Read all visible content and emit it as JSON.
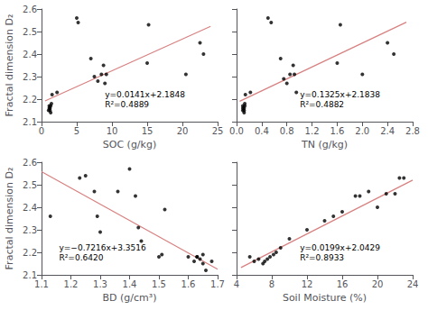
{
  "chart_data": [
    {
      "type": "scatter",
      "xlabel": "SOC (g/kg)",
      "ylabel": "Fractal dimension D₂",
      "annotations": [
        "y=0.0141x+2.1848",
        "R²=0.4889"
      ],
      "xlim": [
        0,
        25
      ],
      "ylim": [
        2.1,
        2.6
      ],
      "xticks": [
        0,
        5,
        10,
        15,
        20,
        25
      ],
      "yticks": [
        2.1,
        2.2,
        2.3,
        2.4,
        2.5,
        2.6
      ],
      "grid": false,
      "series": [
        {
          "type": "scatter",
          "color": "#000000",
          "x": [
            1.0,
            1.1,
            1.1,
            1.2,
            1.2,
            1.3,
            1.3,
            1.4,
            1.5,
            2.2,
            5.0,
            5.2,
            7.0,
            7.5,
            8.0,
            8.5,
            8.8,
            9.0,
            9.2,
            15.0,
            15.2,
            20.5,
            22.5,
            23.0
          ],
          "values": [
            2.15,
            2.17,
            2.16,
            2.16,
            2.15,
            2.14,
            2.17,
            2.18,
            2.22,
            2.23,
            2.56,
            2.54,
            2.38,
            2.3,
            2.28,
            2.31,
            2.35,
            2.27,
            2.31,
            2.36,
            2.53,
            2.31,
            2.45,
            2.4
          ]
        },
        {
          "type": "line",
          "color": "#d88080",
          "x": [
            0.5,
            24.0
          ],
          "values": [
            2.19185,
            2.5232
          ]
        }
      ]
    },
    {
      "type": "scatter",
      "xlabel": "TN (g/kg)",
      "annotations": [
        "y=0.1325x+2.1838",
        "R²=0.4882"
      ],
      "xlim": [
        0,
        2.8
      ],
      "ylim": [
        2.1,
        2.6
      ],
      "xticks": [
        {
          "value": 0,
          "label": "0.0"
        },
        0.4,
        0.8,
        1.2,
        1.6,
        {
          "value": 2,
          "label": "2.0"
        },
        2.4,
        2.8
      ],
      "yticks": [
        2.1,
        2.2,
        2.3,
        2.4,
        2.5,
        2.6
      ],
      "tick_labels": "x",
      "grid": false,
      "series": [
        {
          "type": "scatter",
          "color": "#000000",
          "x": [
            0.1,
            0.1,
            0.1,
            0.12,
            0.12,
            0.12,
            0.13,
            0.13,
            0.14,
            0.22,
            0.5,
            0.55,
            0.7,
            0.75,
            0.8,
            0.85,
            0.9,
            0.92,
            0.95,
            1.6,
            1.65,
            2.0,
            2.4,
            2.5
          ],
          "values": [
            2.15,
            2.17,
            2.16,
            2.16,
            2.15,
            2.14,
            2.17,
            2.18,
            2.22,
            2.23,
            2.56,
            2.54,
            2.38,
            2.29,
            2.27,
            2.31,
            2.35,
            2.31,
            2.23,
            2.36,
            2.53,
            2.31,
            2.45,
            2.4
          ]
        },
        {
          "type": "line",
          "color": "#d88080",
          "x": [
            0.05,
            2.7
          ],
          "values": [
            2.190425,
            2.54155
          ]
        }
      ]
    },
    {
      "type": "scatter",
      "xlabel": "BD (g/cm³)",
      "ylabel": "Fractal dimension D₂",
      "annotations": [
        "y=−0.7216x+3.3516",
        "R²=0.6420"
      ],
      "xlim": [
        1.1,
        1.7
      ],
      "ylim": [
        2.1,
        2.6
      ],
      "xticks": [
        1.1,
        1.2,
        1.3,
        1.4,
        1.5,
        1.6,
        1.7
      ],
      "yticks": [
        2.1,
        2.2,
        2.3,
        2.4,
        2.5,
        2.6
      ],
      "grid": false,
      "series": [
        {
          "type": "scatter",
          "color": "#000000",
          "x": [
            1.13,
            1.23,
            1.25,
            1.28,
            1.29,
            1.3,
            1.36,
            1.4,
            1.42,
            1.43,
            1.44,
            1.5,
            1.51,
            1.52,
            1.6,
            1.62,
            1.63,
            1.63,
            1.64,
            1.65,
            1.65,
            1.66,
            1.68
          ],
          "values": [
            2.36,
            2.53,
            2.54,
            2.47,
            2.36,
            2.29,
            2.47,
            2.57,
            2.45,
            2.31,
            2.25,
            2.18,
            2.19,
            2.39,
            2.18,
            2.16,
            2.18,
            2.18,
            2.17,
            2.19,
            2.15,
            2.12,
            2.16
          ]
        },
        {
          "type": "line",
          "color": "#d88080",
          "x": [
            1.1,
            1.7
          ],
          "values": [
            2.55784,
            2.12488
          ]
        }
      ]
    },
    {
      "type": "scatter",
      "xlabel": "Soil Moisture (%)",
      "annotations": [
        "y=0.0199x+2.0429",
        "R²=0.8933"
      ],
      "xlim": [
        4,
        24
      ],
      "ylim": [
        2.1,
        2.6
      ],
      "xticks": [
        4,
        8,
        12,
        16,
        20,
        24
      ],
      "yticks": [
        2.1,
        2.2,
        2.3,
        2.4,
        2.5,
        2.6
      ],
      "tick_labels": "x",
      "grid": false,
      "series": [
        {
          "type": "scatter",
          "color": "#000000",
          "x": [
            5.5,
            6.0,
            6.5,
            7.0,
            7.2,
            7.5,
            7.8,
            8.2,
            8.5,
            9.0,
            10.0,
            12.0,
            14.0,
            15.0,
            16.0,
            17.5,
            18.0,
            19.0,
            20.0,
            21.0,
            22.0,
            22.5,
            23.0
          ],
          "values": [
            2.18,
            2.16,
            2.17,
            2.15,
            2.16,
            2.17,
            2.18,
            2.19,
            2.2,
            2.22,
            2.26,
            2.3,
            2.34,
            2.36,
            2.38,
            2.45,
            2.45,
            2.47,
            2.4,
            2.46,
            2.46,
            2.53,
            2.53
          ]
        },
        {
          "type": "line",
          "color": "#d88080",
          "x": [
            4.5,
            24.0
          ],
          "values": [
            2.13245,
            2.5205
          ]
        }
      ]
    }
  ]
}
